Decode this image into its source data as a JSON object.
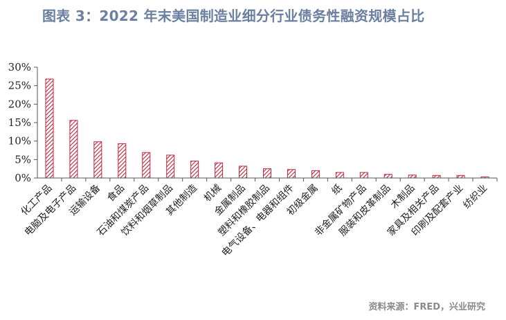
{
  "chart_data": {
    "type": "bar",
    "title": "图表 3：2022 年末美国制造业细分行业债务性融资规模占比",
    "categories": [
      "化工产品",
      "电脑及电子产品",
      "运输设备",
      "食品",
      "石油和煤炭产品",
      "饮料和烟草制品",
      "其他制造",
      "机械",
      "金属制品",
      "塑料和橡胶制品",
      "电气设备、电器和组件",
      "初级金属",
      "纸",
      "非金属矿物产品",
      "服装和皮革制品",
      "木制品",
      "家具及相关产品",
      "印刷及配套产业",
      "纺织业"
    ],
    "values": [
      26.8,
      15.6,
      9.8,
      9.3,
      6.9,
      6.2,
      4.6,
      4.1,
      3.2,
      2.5,
      2.3,
      2.0,
      1.5,
      1.5,
      1.0,
      0.8,
      0.7,
      0.7,
      0.3
    ],
    "ylim": [
      0,
      30
    ],
    "yticks": [
      "0%",
      "5%",
      "10%",
      "15%",
      "20%",
      "25%",
      "30%"
    ],
    "grid": false,
    "legend": "none",
    "bar_color": "#c0243c",
    "source": "资料来源：FRED，兴业研究"
  }
}
